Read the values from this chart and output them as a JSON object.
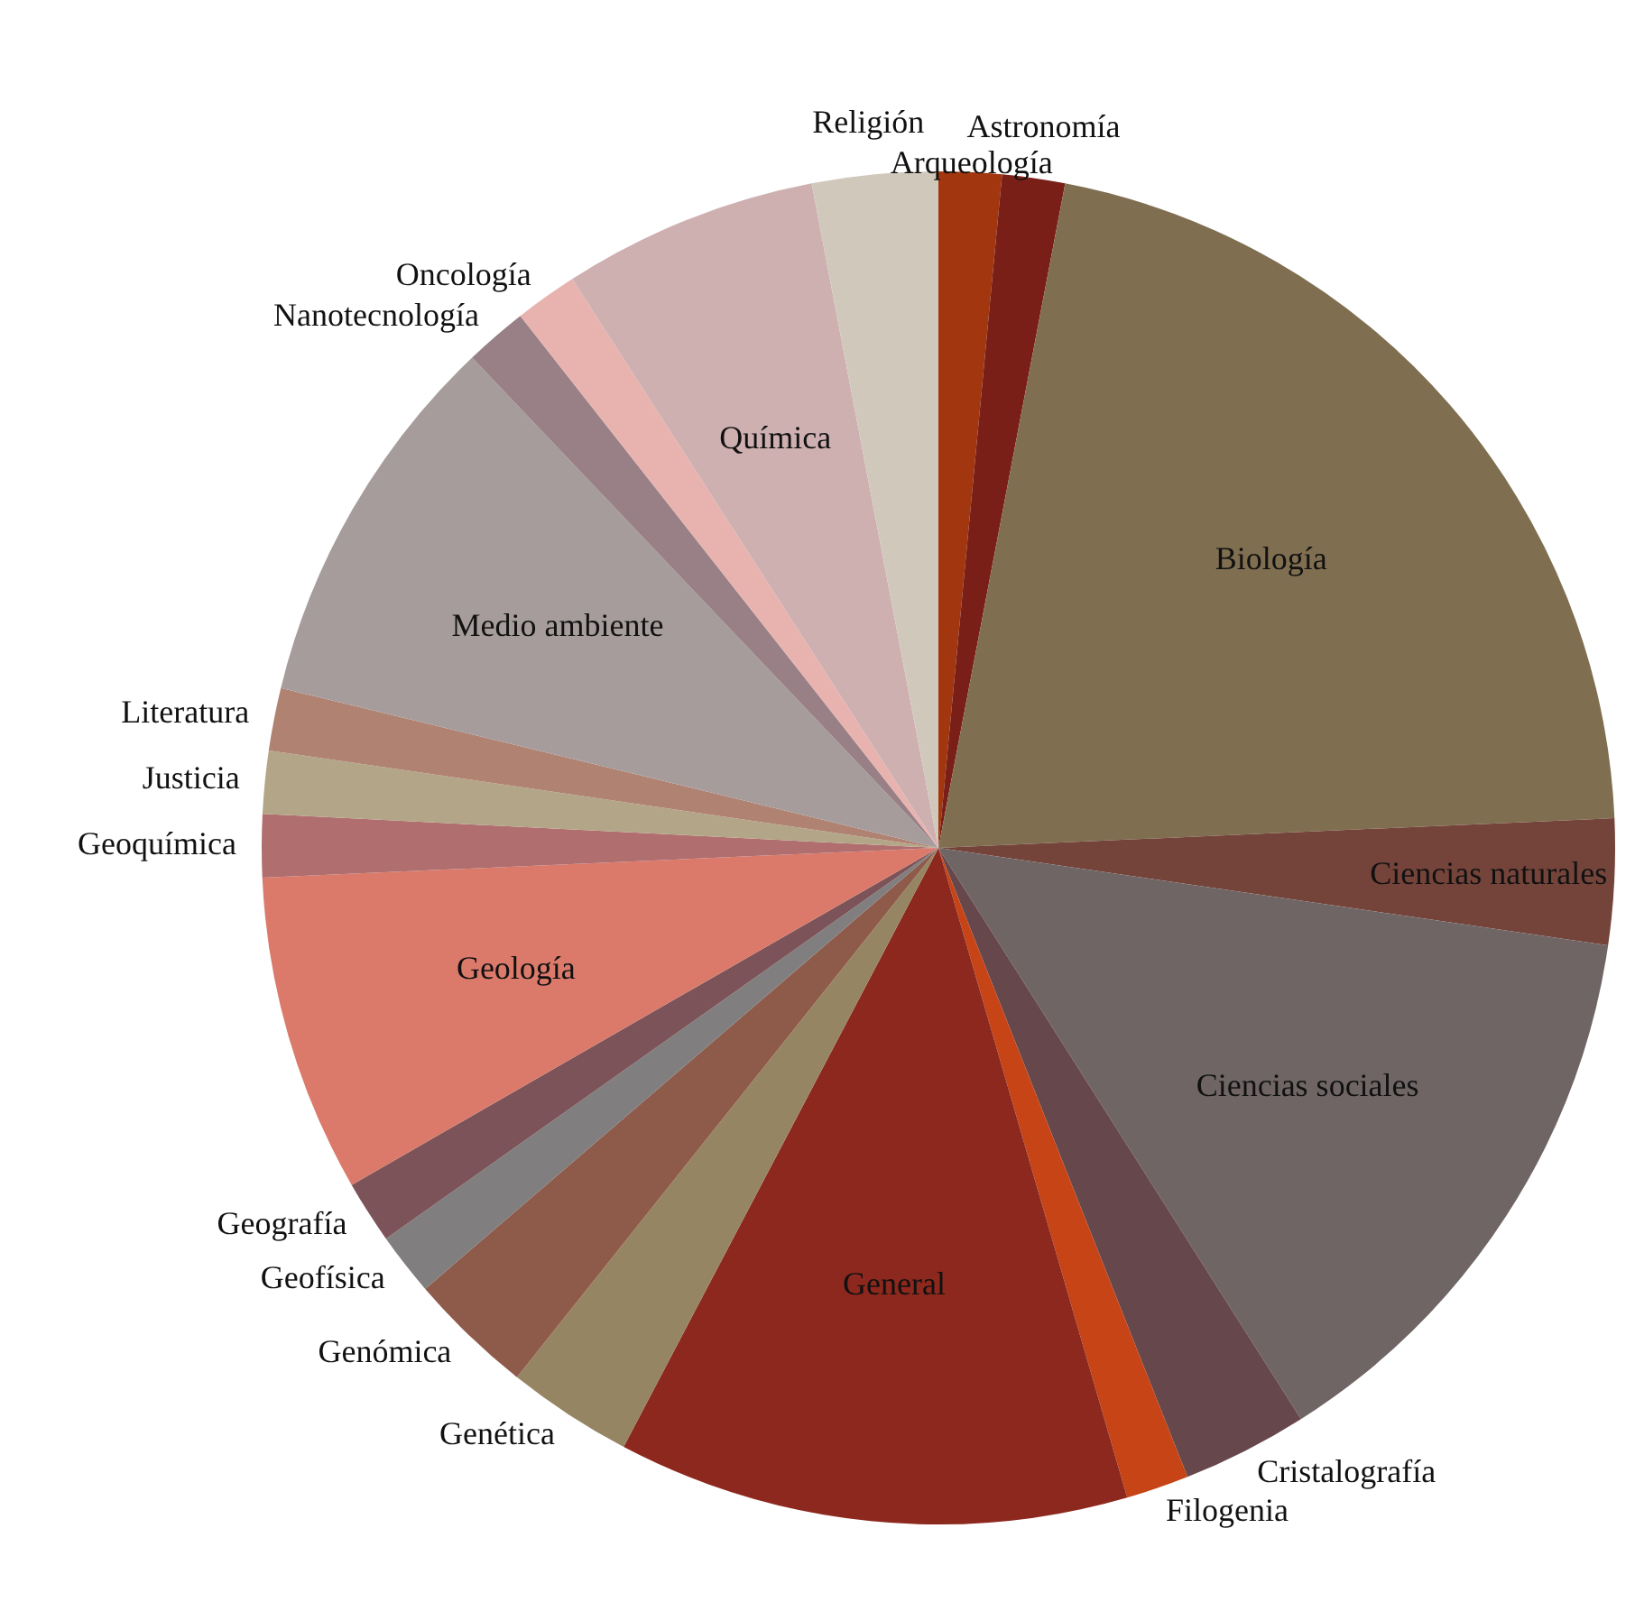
{
  "chart_data": {
    "type": "pie",
    "categories": [
      "Arqueología",
      "Astronomía",
      "Biología",
      "Ciencias naturales",
      "Ciencias sociales",
      "Cristalografía",
      "Filogenia",
      "General",
      "Genética",
      "Genómica",
      "Geofísica",
      "Geografía",
      "Geología",
      "Geoquímica",
      "Justicia",
      "Literatura",
      "Medio ambiente",
      "Nanotecnología",
      "Oncología",
      "Química",
      "Religión"
    ],
    "values": [
      1.5,
      1.5,
      21.3,
      3.0,
      13.7,
      3.0,
      1.5,
      12.2,
      3.0,
      3.0,
      1.5,
      1.5,
      7.6,
      1.5,
      1.5,
      1.5,
      9.1,
      1.5,
      1.5,
      6.1,
      3.0
    ],
    "colors": [
      "#a2360f",
      "#7a1f17",
      "#7f6f50",
      "#74443a",
      "#6f6565",
      "#66474b",
      "#c64416",
      "#8d281e",
      "#968562",
      "#8e5b4b",
      "#807e7e",
      "#7b5358",
      "#db7a6a",
      "#b06e6e",
      "#b3a587",
      "#b08272",
      "#a69c9c",
      "#988086",
      "#e8b3ae",
      "#cfb0b1",
      "#d1c8bc"
    ],
    "legend": false
  }
}
